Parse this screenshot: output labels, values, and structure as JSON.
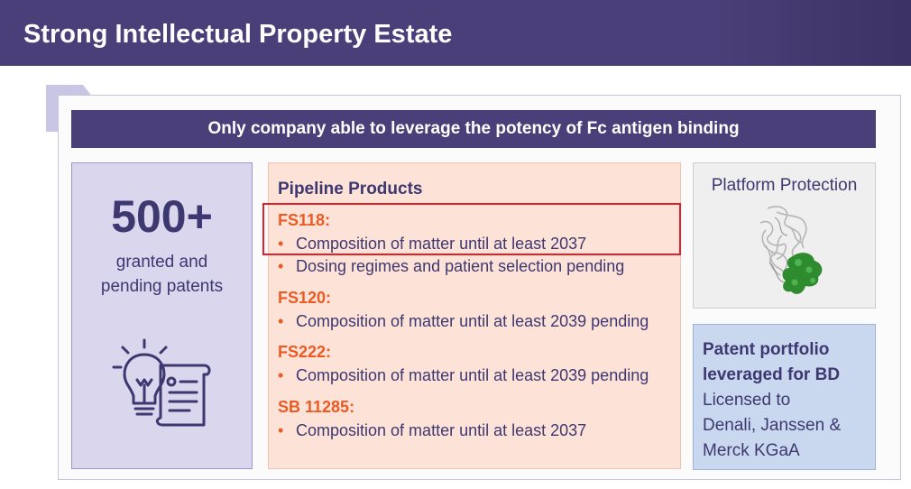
{
  "header": {
    "title": "Strong Intellectual Property Estate"
  },
  "banner": {
    "text": "Only company able to leverage the potency of Fc antigen binding"
  },
  "patents_box": {
    "count": "500+",
    "line1": "granted and",
    "line2": "pending patents",
    "icon": "lightbulb-document-icon"
  },
  "pipeline": {
    "title": "Pipeline Products",
    "products": [
      {
        "name": "FS118:",
        "bullets": [
          "Composition of matter until at least 2037",
          "Dosing regimes and patient selection pending"
        ]
      },
      {
        "name": "FS120:",
        "bullets": [
          "Composition of matter until at least 2039 pending"
        ]
      },
      {
        "name": "FS222:",
        "bullets": [
          "Composition of matter until at least 2039 pending"
        ]
      },
      {
        "name": "SB 11285:",
        "bullets": [
          "Composition of matter until at least 2037"
        ]
      }
    ]
  },
  "platform": {
    "title": "Platform Protection",
    "image": "protein-structure-image"
  },
  "portfolio": {
    "bold_line1": "Patent portfolio",
    "bold_line2": "leveraged for BD",
    "line1": "Licensed to",
    "line2": "Denali, Janssen &",
    "line3": "Merck KGaA"
  },
  "colors": {
    "header": "#4a3f78",
    "product_name": "#ea5b24",
    "highlight_border": "#e0202a",
    "pipeline_bg": "#fde2d8",
    "patents_bg": "#d9d6ee",
    "portfolio_bg": "#c9d8ef"
  }
}
